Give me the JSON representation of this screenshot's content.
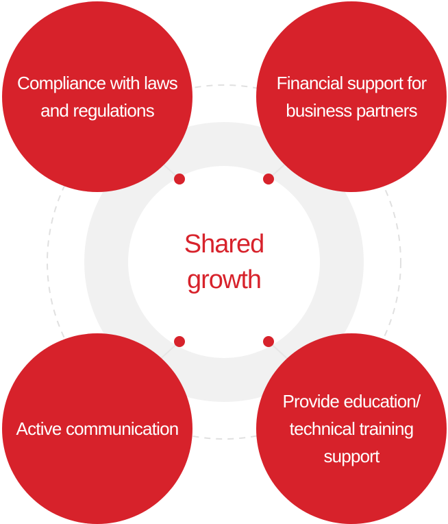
{
  "center": {
    "line1": "Shared",
    "line2": "growth"
  },
  "items": [
    {
      "lines": [
        "Compliance with laws",
        "and regulations"
      ]
    },
    {
      "lines": [
        "Financial support for",
        "business partners"
      ]
    },
    {
      "lines": [
        "Active communication"
      ]
    },
    {
      "lines": [
        "Provide education/",
        "technical training",
        "support"
      ]
    }
  ],
  "colors": {
    "accent": "#d7222b",
    "ring": "#f1f1f1",
    "dash": "#e0e0e0"
  }
}
